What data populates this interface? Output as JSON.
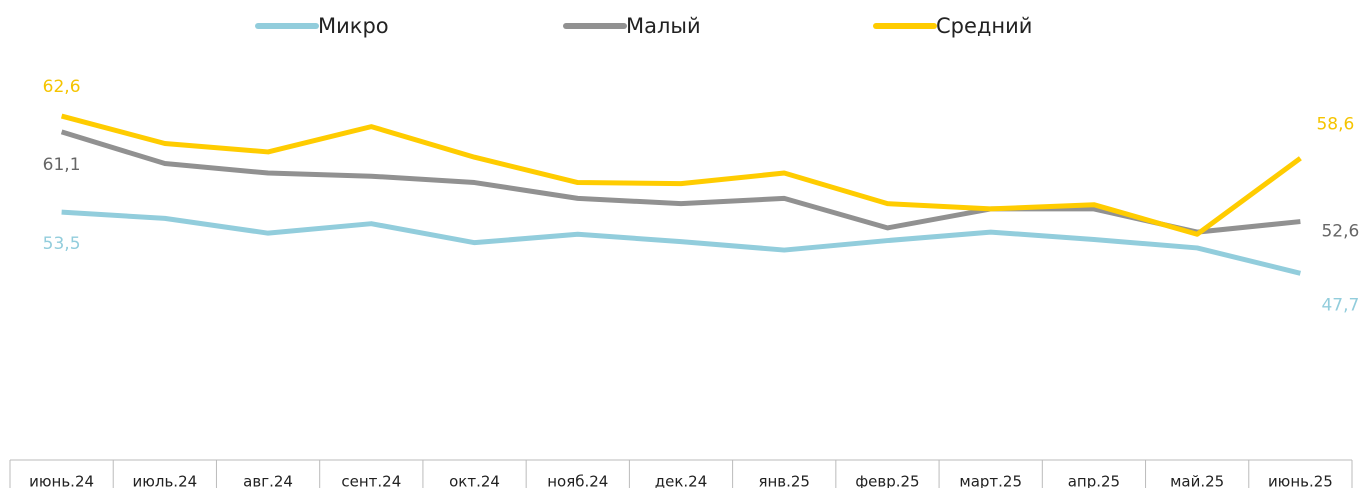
{
  "chart_data": {
    "type": "line",
    "categories": [
      "июнь.24",
      "июль.24",
      "авг.24",
      "сент.24",
      "окт.24",
      "нояб.24",
      "дек.24",
      "янв.25",
      "февр.25",
      "март.25",
      "апр.25",
      "май.25",
      "июнь.25"
    ],
    "series": [
      {
        "name": "Микро",
        "color": "#92cddc",
        "label_color": "#92cddc",
        "values": [
          53.5,
          52.9,
          51.5,
          52.4,
          50.6,
          51.4,
          50.7,
          49.9,
          50.8,
          51.6,
          50.9,
          50.1,
          47.7
        ],
        "value_labels": [
          "53,5",
          null,
          null,
          null,
          null,
          null,
          null,
          null,
          null,
          null,
          null,
          null,
          "47,7"
        ]
      },
      {
        "name": "Малый",
        "color": "#919191",
        "label_color": "#666666",
        "values": [
          61.1,
          58.1,
          57.2,
          56.9,
          56.3,
          54.8,
          54.3,
          54.8,
          52.0,
          53.8,
          53.8,
          51.6,
          52.6
        ],
        "value_labels": [
          "61,1",
          null,
          null,
          null,
          null,
          null,
          null,
          null,
          null,
          null,
          null,
          null,
          "52,6"
        ]
      },
      {
        "name": "Средний",
        "color": "#ffcc00",
        "label_color": "#f5c400",
        "values": [
          62.6,
          60.0,
          59.2,
          61.6,
          58.7,
          56.3,
          56.2,
          57.2,
          54.3,
          53.8,
          54.2,
          51.4,
          58.6
        ],
        "value_labels": [
          "62,6",
          null,
          null,
          null,
          null,
          null,
          null,
          null,
          null,
          null,
          null,
          null,
          "58,6"
        ]
      }
    ],
    "ylim": [
      30,
      70
    ]
  }
}
